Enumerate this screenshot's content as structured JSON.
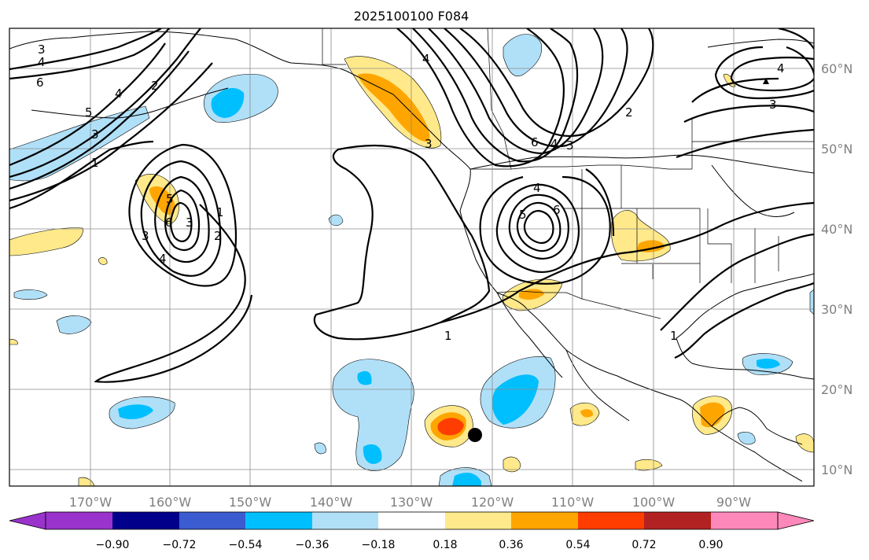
{
  "title": "2025100100 F084",
  "map": {
    "lon_labels": [
      "170°W",
      "160°W",
      "150°W",
      "140°W",
      "130°W",
      "120°W",
      "110°W",
      "100°W",
      "90°W"
    ],
    "lat_labels": [
      "60°N",
      "50°N",
      "40°N",
      "30°N",
      "20°N",
      "10°N"
    ],
    "contour_labels": [
      "3",
      "4",
      "6",
      "5",
      "4",
      "2",
      "3",
      "1",
      "1",
      "2",
      "3",
      "4",
      "5",
      "6",
      "3",
      "4",
      "6",
      "2",
      "3",
      "4",
      "1",
      "6",
      "5",
      "4",
      "3",
      "1",
      "4",
      "3"
    ],
    "colors": {
      "purple": "#9933cc",
      "navy": "#00008b",
      "blue": "#3b5bd1",
      "deepsky": "#00bfff",
      "lightblue": "#b0e0f8",
      "white": "#ffffff",
      "yellow": "#ffe98a",
      "orange": "#ffa500",
      "redorange": "#ff3d00",
      "firebrick": "#b22222",
      "pink": "#ff88bb"
    }
  },
  "colorbar": {
    "ticks": [
      "−0.90",
      "−0.72",
      "−0.54",
      "−0.36",
      "−0.18",
      "0.18",
      "0.36",
      "0.54",
      "0.72",
      "0.90"
    ],
    "bins": [
      "#9933cc",
      "#00008b",
      "#3b5bd1",
      "#00bfff",
      "#b0e0f8",
      "#ffffff",
      "#ffe98a",
      "#ffa500",
      "#ff3d00",
      "#b22222",
      "#ff88bb"
    ]
  }
}
